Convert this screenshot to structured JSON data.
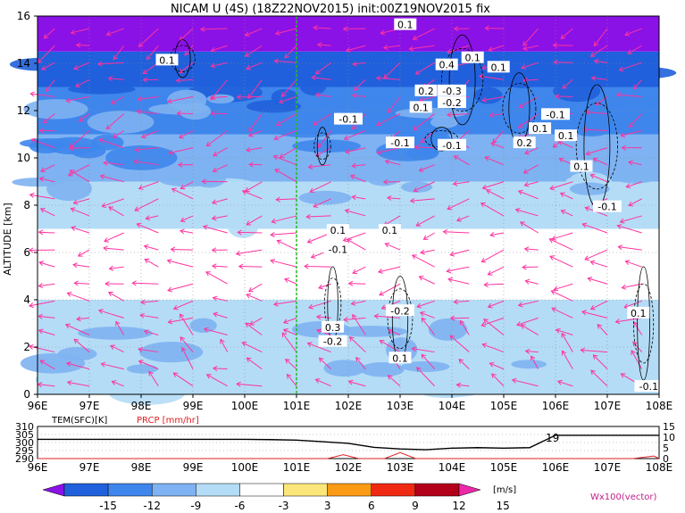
{
  "title": "NICAM U (4S) (18Z22NOV2015) init:00Z19NOV2015 fix",
  "chart_data": [
    {
      "type": "heatmap",
      "title": "NICAM U (4S) (18Z22NOV2015) init:00Z19NOV2015 fix",
      "ylabel": "ALTITUDE [km]",
      "xlim": [
        96,
        108
      ],
      "ylim": [
        0,
        16
      ],
      "x_ticks": [
        "96E",
        "97E",
        "98E",
        "99E",
        "100E",
        "101E",
        "102E",
        "103E",
        "104E",
        "105E",
        "106E",
        "107E",
        "108E"
      ],
      "y_ticks": [
        "0",
        "2",
        "4",
        "6",
        "8",
        "10",
        "12",
        "14",
        "16"
      ],
      "grid": true,
      "marker_line_x": 101,
      "zonal_wind_bands": [
        {
          "z_min": 0,
          "z_max": 4,
          "level": -3
        },
        {
          "z_min": 4,
          "z_max": 7,
          "level": 0
        },
        {
          "z_min": 7,
          "z_max": 9,
          "level": -3
        },
        {
          "z_min": 9,
          "z_max": 11,
          "level": -6
        },
        {
          "z_min": 11,
          "z_max": 13,
          "level": -9
        },
        {
          "z_min": 13,
          "z_max": 14.5,
          "level": -12
        },
        {
          "z_min": 14.5,
          "z_max": 16,
          "level": -15
        }
      ],
      "contour_labels": [
        {
          "text": "0.1",
          "x": 98.5,
          "z": 14.1
        },
        {
          "text": "0.1",
          "x": 103.1,
          "z": 15.6
        },
        {
          "text": "0.1",
          "x": 104.4,
          "z": 14.2
        },
        {
          "text": "0.1",
          "x": 104.9,
          "z": 13.8
        },
        {
          "text": "0.4",
          "x": 103.9,
          "z": 13.9
        },
        {
          "text": "0.2",
          "x": 103.5,
          "z": 12.8
        },
        {
          "text": "-0.3",
          "x": 104.0,
          "z": 12.8
        },
        {
          "text": "0.1",
          "x": 103.4,
          "z": 12.1
        },
        {
          "text": "-0.2",
          "x": 104.0,
          "z": 12.3
        },
        {
          "text": "-0.1",
          "x": 102.0,
          "z": 11.6
        },
        {
          "text": "-0.1",
          "x": 106.0,
          "z": 11.8
        },
        {
          "text": "0.1",
          "x": 105.7,
          "z": 11.2
        },
        {
          "text": "0.1",
          "x": 106.2,
          "z": 10.9
        },
        {
          "text": "0.2",
          "x": 105.4,
          "z": 10.6
        },
        {
          "text": "-0.1",
          "x": 103.0,
          "z": 10.6
        },
        {
          "text": "-0.1",
          "x": 104.0,
          "z": 10.5
        },
        {
          "text": "0.1",
          "x": 106.5,
          "z": 9.6
        },
        {
          "text": "-0.1",
          "x": 107.0,
          "z": 7.9
        },
        {
          "text": "0.1",
          "x": 101.8,
          "z": 6.9
        },
        {
          "text": "0.1",
          "x": 102.8,
          "z": 6.9
        },
        {
          "text": "-0.1",
          "x": 101.8,
          "z": 6.1
        },
        {
          "text": "-0.2",
          "x": 103.0,
          "z": 3.5
        },
        {
          "text": "0.3",
          "x": 101.7,
          "z": 2.8
        },
        {
          "text": "-0.2",
          "x": 101.7,
          "z": 2.2
        },
        {
          "text": "0.1",
          "x": 103.0,
          "z": 1.5
        },
        {
          "text": "0.1",
          "x": 107.6,
          "z": 3.4
        },
        {
          "text": "-0.1",
          "x": 107.8,
          "z": 0.3
        }
      ],
      "vector_label": "Wx100(vector)",
      "vector_color": "#ff33a0"
    },
    {
      "type": "line",
      "labels": [
        "TEM(SFC)[K]",
        "PRCP [mm/hr]"
      ],
      "x_ticks": [
        "96E",
        "97E",
        "98E",
        "99E",
        "100E",
        "101E",
        "102E",
        "103E",
        "104E",
        "105E",
        "106E",
        "107E",
        "108E"
      ],
      "left_ticks": [
        "310",
        "305",
        "300",
        "295",
        "290"
      ],
      "right_ticks": [
        "15",
        "10",
        "5",
        "0"
      ],
      "left_range": [
        290,
        310
      ],
      "right_range": [
        0,
        15
      ],
      "series": [
        {
          "name": "TEM(SFC)[K]",
          "color": "#000000",
          "x": [
            96,
            97,
            98,
            99,
            100,
            100.5,
            101,
            101.5,
            102,
            102.5,
            103,
            103.5,
            104,
            104.5,
            105,
            105.5,
            106,
            106.5,
            107,
            107.5,
            108
          ],
          "values": [
            302,
            302,
            302,
            302,
            302,
            301.8,
            301.5,
            300.5,
            299.5,
            297,
            296,
            295.5,
            296.5,
            296.8,
            296.5,
            296.8,
            304.5,
            304.5,
            304.5,
            304.5,
            304.5
          ]
        },
        {
          "name": "PRCP [mm/hr]",
          "color": "#e02020",
          "x": [
            96,
            101.6,
            101.9,
            102.2,
            102.7,
            103.0,
            103.3,
            103.6,
            107.5,
            107.9,
            108
          ],
          "values": [
            0,
            0,
            1.8,
            0,
            0,
            2.8,
            0,
            0,
            0,
            1.2,
            0
          ]
        }
      ],
      "annotation": "19"
    }
  ],
  "colorbar": {
    "ticks": [
      "-15",
      "-12",
      "-9",
      "-6",
      "-3",
      "3",
      "6",
      "9",
      "12",
      "15"
    ],
    "unit": "[m/s]",
    "colors": [
      "#8a12e6",
      "#2060dc",
      "#3e86ec",
      "#7eb2f2",
      "#b4dcf6",
      "#ffffff",
      "#fbe67a",
      "#fb9a14",
      "#f02a12",
      "#b2001a",
      "#ec28a8"
    ]
  },
  "colors": {
    "level_-15": "#8a12e6",
    "level_-12": "#2060dc",
    "level_-9": "#3e86ec",
    "level_-6": "#7eb2f2",
    "level_-3": "#b4dcf6",
    "level_0": "#ffffff",
    "grid": "#8c8c8c",
    "marker_line": "#22bb22",
    "prcp": "#e02020"
  }
}
